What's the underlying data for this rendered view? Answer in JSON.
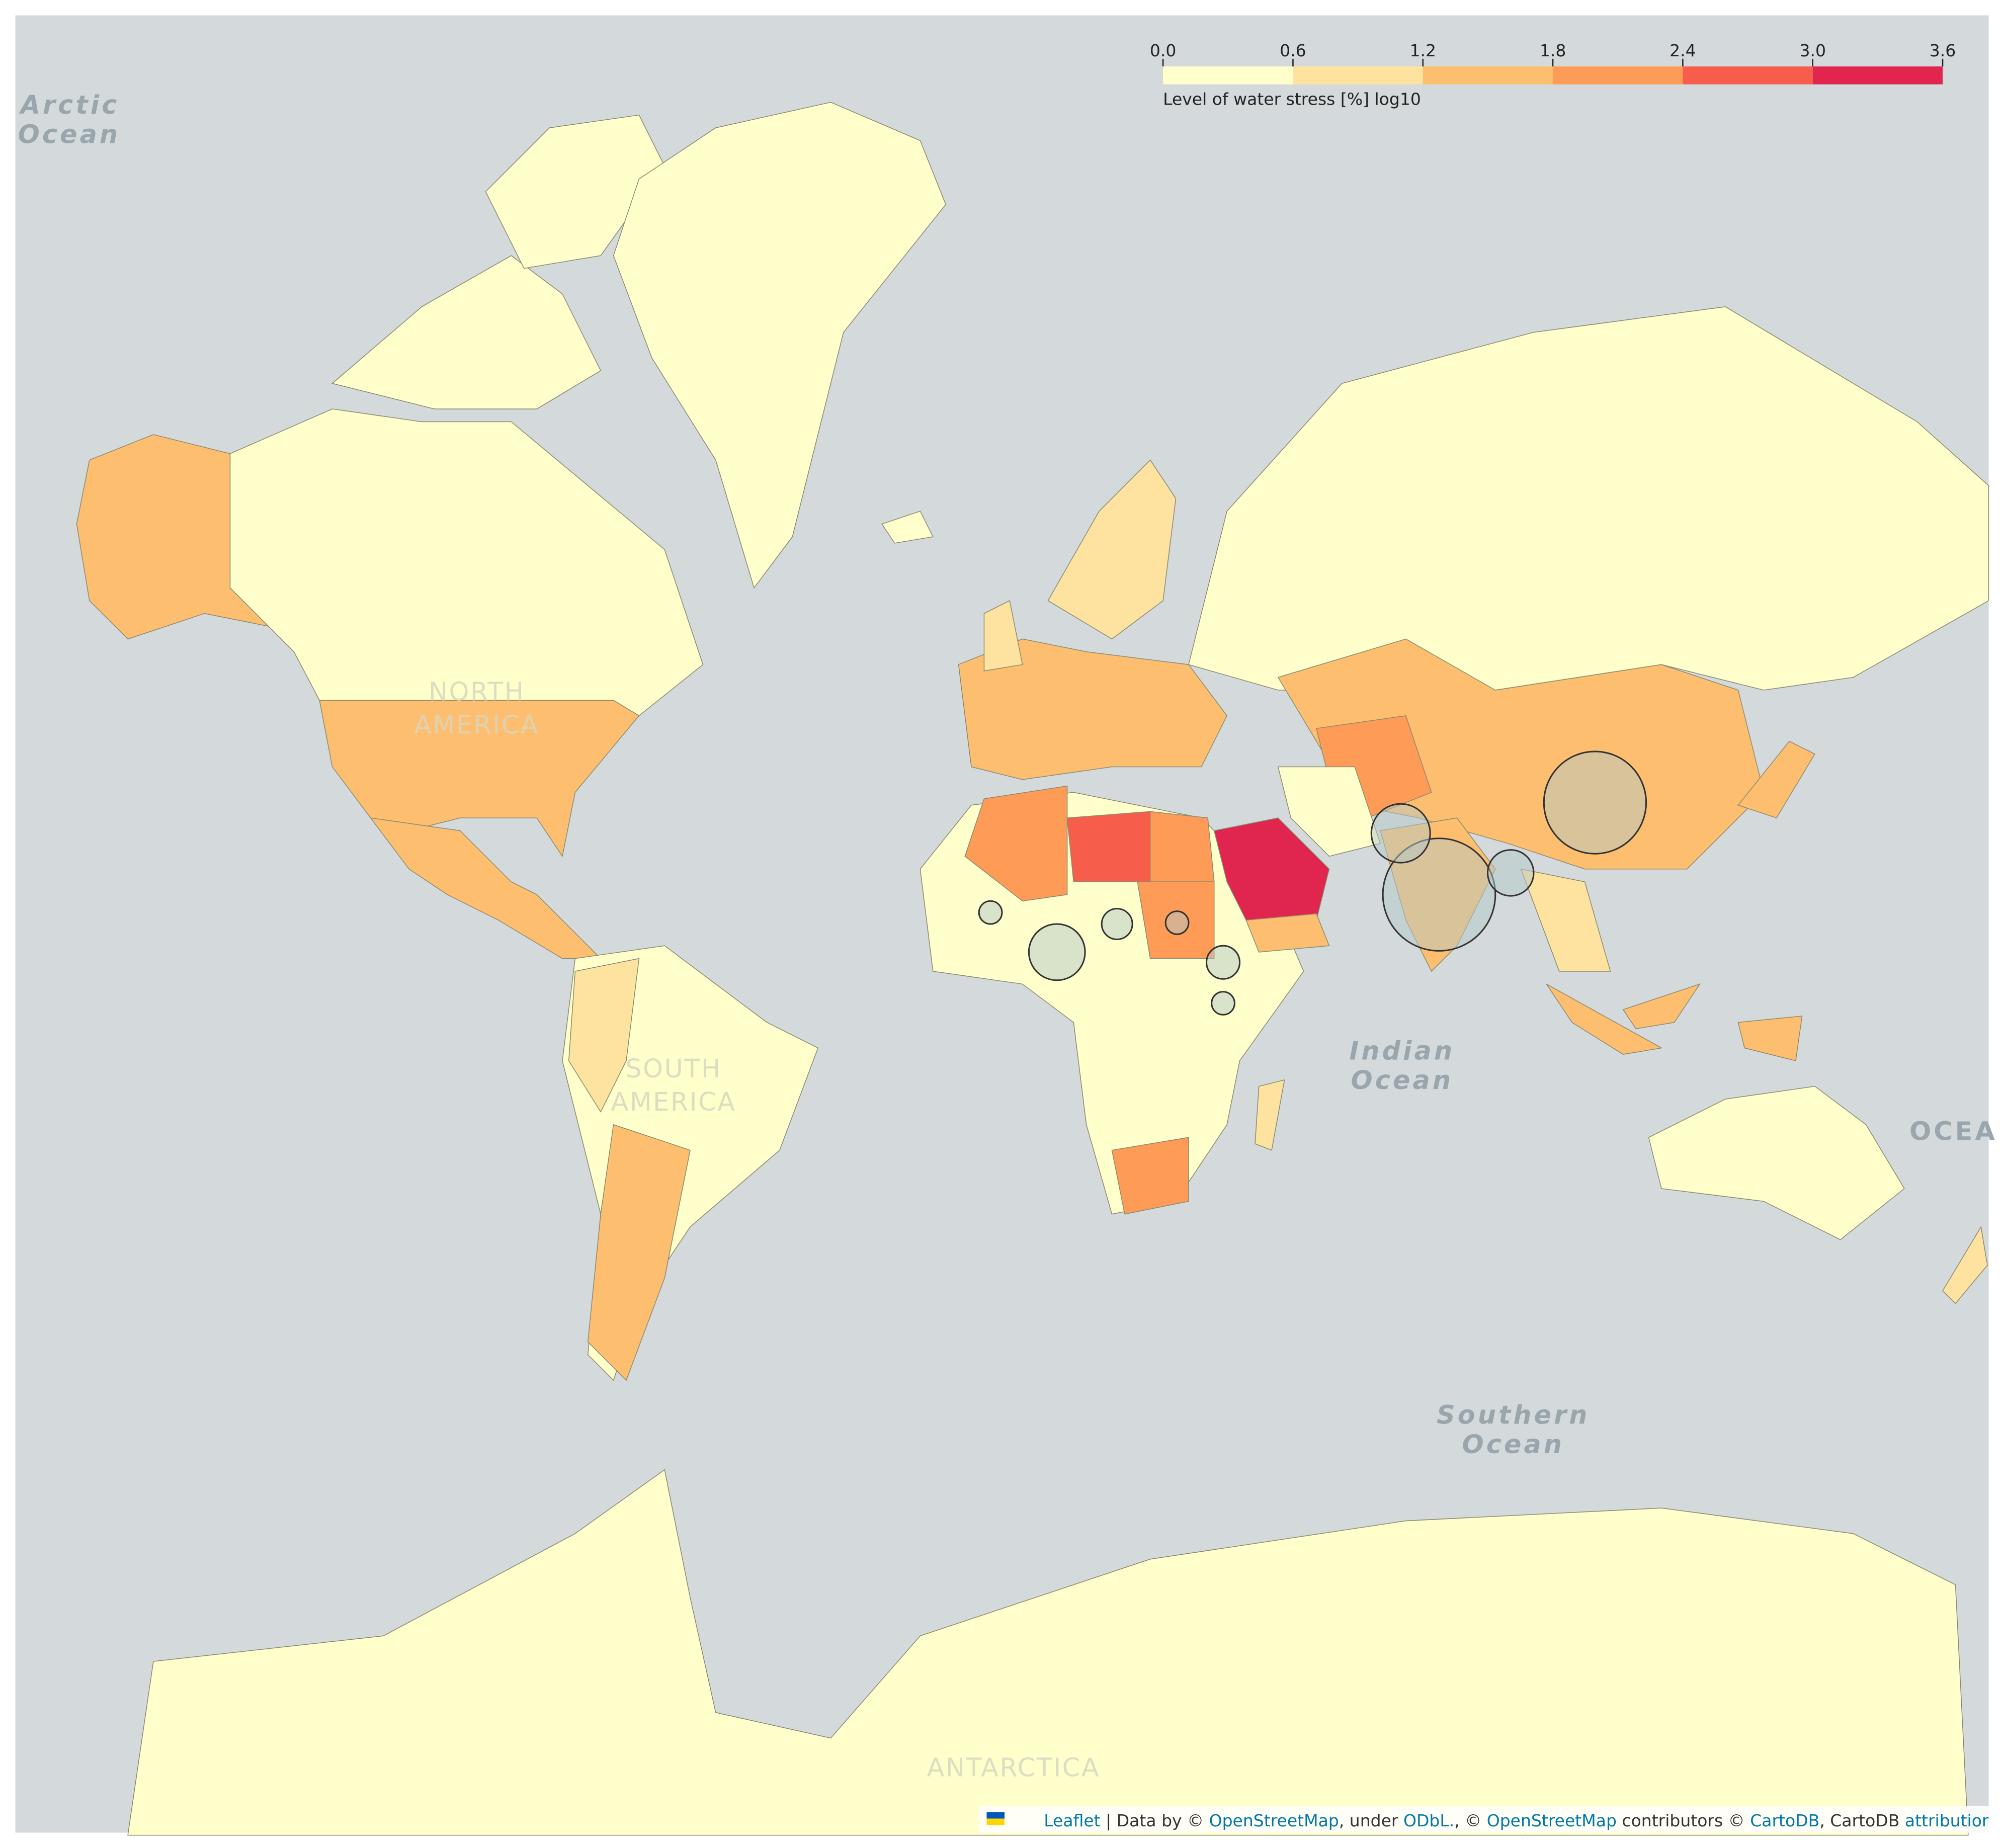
{
  "map": {
    "legend": {
      "ticks": [
        {
          "value": 0,
          "label": "0.0"
        },
        0.6,
        1.2,
        1.8,
        2.4,
        {
          "value": 3,
          "label": "3.0"
        },
        3.6
      ],
      "colors": [
        "#ffffcc",
        "#fee2a0",
        "#fdbf6f",
        "#fd9b57",
        "#f65d4a",
        "#e0264e"
      ],
      "caption": "Level of water stress [%] log10"
    },
    "labels": {
      "arctic": [
        "Arctic",
        "Ocean"
      ],
      "indian": [
        "Indian",
        "Ocean"
      ],
      "southern": [
        "Southern",
        "Ocean"
      ],
      "ocea": "OCEA",
      "north_america": [
        "NORTH",
        "AMERICA"
      ],
      "south_america": [
        "SOUTH",
        "AMERICA"
      ],
      "antarctica": "ANTARCTICA"
    },
    "attribution": [
      "Leaflet",
      " | Data by © ",
      "OpenStreetMap",
      ", under ",
      "ODbL.",
      ", © ",
      "OpenStreetMap",
      " contributors © ",
      "CartoDB",
      ", CartoDB ",
      "attributior"
    ]
  }
}
